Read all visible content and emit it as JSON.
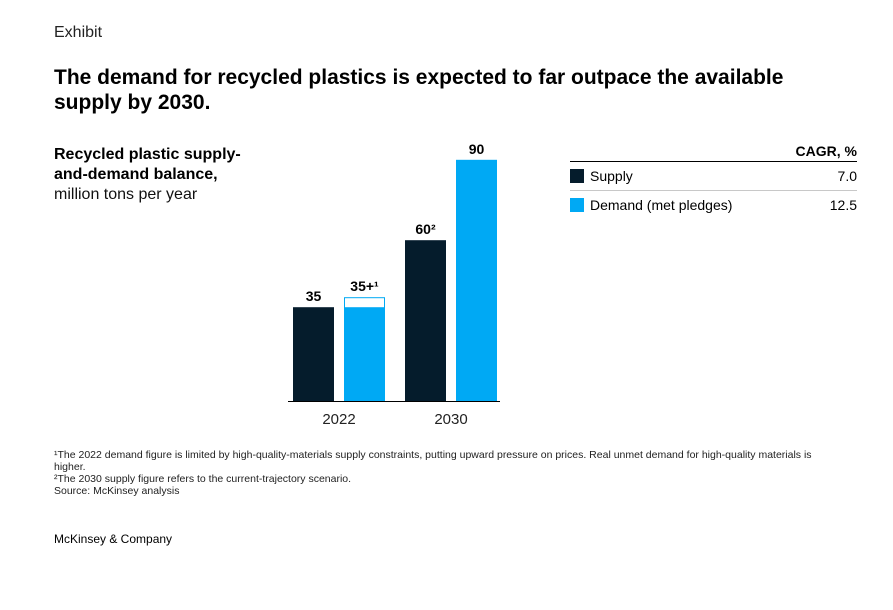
{
  "header": {
    "exhibit_label": "Exhibit",
    "title": "The demand for recycled plastics is expected to far outpace the available supply by 2030."
  },
  "chart_title": {
    "bold": "Recycled plastic supply-and-demand balance,",
    "unit": "million tons per year"
  },
  "legend": {
    "header": "CAGR, %",
    "items": [
      {
        "name": "Supply",
        "value": "7.0",
        "color": "#051c2c"
      },
      {
        "name": "Demand (met pledges)",
        "value": "12.5",
        "color": "#00a9f4"
      }
    ]
  },
  "chart_data": {
    "type": "bar",
    "categories": [
      "2022",
      "2030"
    ],
    "series": [
      {
        "name": "Supply",
        "color": "#051c2c",
        "values": [
          35,
          60
        ],
        "labels": [
          "35",
          "60²"
        ]
      },
      {
        "name": "Demand (met pledges)",
        "color": "#00a9f4",
        "values": [
          35,
          90
        ],
        "labels": [
          "35+¹",
          "90"
        ],
        "unmet_outline": [
          true,
          false
        ]
      }
    ],
    "ylim": [
      0,
      100
    ]
  },
  "footnotes": [
    "¹The 2022 demand figure is limited by high-quality-materials supply constraints, putting upward pressure on prices. Real unmet demand for high-quality materials is higher.",
    "²The 2030 supply figure refers to the current-trajectory scenario.",
    "Source: McKinsey analysis"
  ],
  "brand": "McKinsey & Company"
}
